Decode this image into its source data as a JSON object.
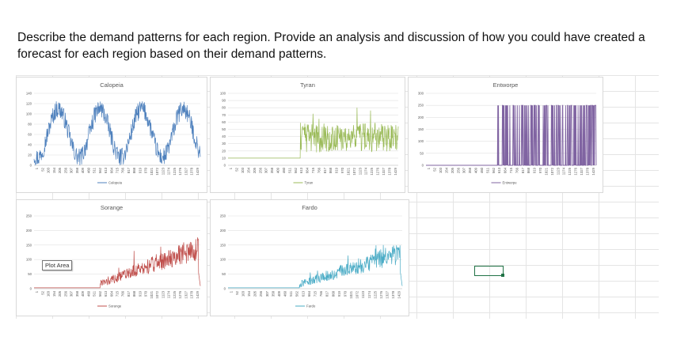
{
  "prompt_text": "Describe the demand patterns for each region. Provide an analysis and discussion of how you could have created a forecast for each region based on their demand patterns.",
  "plot_area_tooltip": "Plot Area",
  "x_tick_labels": [
    "1",
    "52",
    "103",
    "154",
    "205",
    "256",
    "307",
    "358",
    "409",
    "460",
    "511",
    "562",
    "613",
    "664",
    "715",
    "766",
    "817",
    "868",
    "919",
    "970",
    "1021",
    "1072",
    "1123",
    "1174",
    "1225",
    "1276",
    "1327",
    "1378",
    "1429"
  ],
  "chart_data": [
    {
      "type": "line",
      "title": "Calopeia",
      "color": "#4f81bd",
      "x_range": [
        1,
        1460
      ],
      "ylim": [
        0,
        140
      ],
      "y_ticks": [
        "0",
        "20",
        "40",
        "60",
        "80",
        "100",
        "120",
        "140"
      ],
      "series": [
        {
          "name": "Calopeia",
          "pattern": "seasonal",
          "period": 365,
          "low": 15,
          "high": 110,
          "noise": 18,
          "start": 1,
          "values_min": 0,
          "values_max": 130
        }
      ],
      "legend": "bottom"
    },
    {
      "type": "line",
      "title": "Tyran",
      "color": "#9bbb59",
      "x_range": [
        1,
        1460
      ],
      "ylim": [
        0,
        100
      ],
      "y_ticks": [
        "0",
        "10",
        "20",
        "30",
        "40",
        "50",
        "60",
        "70",
        "80",
        "90",
        "100"
      ],
      "series": [
        {
          "name": "Tyran",
          "pattern": "flat-then-noisy",
          "start": 620,
          "before": 10,
          "level": 38,
          "noise": 20,
          "values_max": 88
        }
      ],
      "legend": "bottom"
    },
    {
      "type": "line",
      "title": "Entworpe",
      "color": "#8064a2",
      "x_range": [
        1,
        1460
      ],
      "ylim": [
        0,
        300
      ],
      "y_ticks": [
        "0",
        "50",
        "100",
        "150",
        "200",
        "250",
        "300"
      ],
      "series": [
        {
          "name": "Entworpe",
          "pattern": "sporadic-spikes",
          "start": 610,
          "spike_max": 250
        }
      ],
      "legend": "bottom"
    },
    {
      "type": "line",
      "title": "Sorange",
      "color": "#c0504d",
      "x_range": [
        1,
        1460
      ],
      "ylim": [
        0,
        250
      ],
      "y_ticks": [
        "0",
        "50",
        "100",
        "150",
        "200",
        "250"
      ],
      "series": [
        {
          "name": "Sorange",
          "pattern": "trend-up",
          "start": 580,
          "before": 3,
          "start_level": 18,
          "end_level": 140,
          "noise": 30,
          "values_max": 215
        }
      ],
      "legend": "bottom"
    },
    {
      "type": "line",
      "title": "Fardo",
      "color": "#4bacc6",
      "x_range": [
        1,
        1460
      ],
      "ylim": [
        0,
        250
      ],
      "y_ticks": [
        "0",
        "50",
        "100",
        "150",
        "200",
        "250"
      ],
      "series": [
        {
          "name": "Fardo",
          "pattern": "trend-up",
          "start": 600,
          "before": 3,
          "start_level": 15,
          "end_level": 125,
          "noise": 28,
          "values_max": 180
        }
      ],
      "legend": "bottom"
    }
  ]
}
